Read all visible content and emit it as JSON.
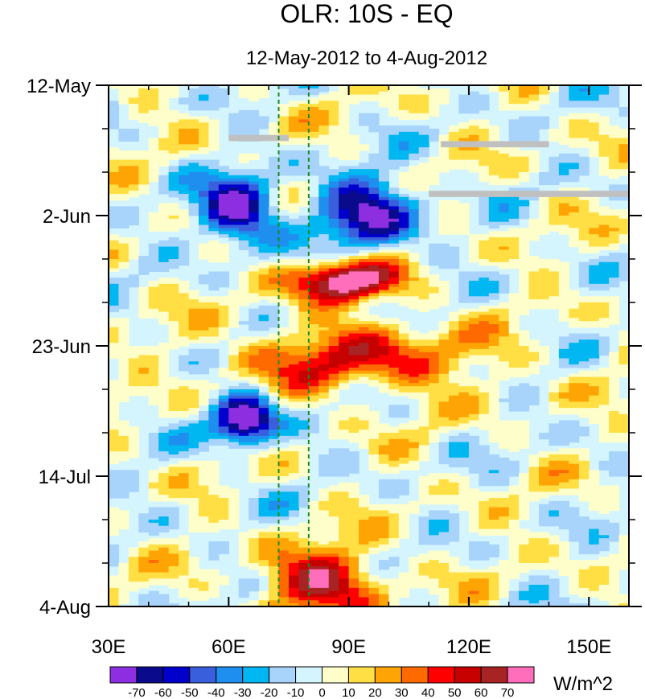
{
  "chart_data": {
    "type": "heatmap",
    "title": "OLR: 10S - EQ",
    "subtitle": "12-May-2012 to 4-Aug-2012",
    "x_range": [
      30,
      160
    ],
    "x_ticks": [
      {
        "value": 30,
        "label": "30E"
      },
      {
        "value": 60,
        "label": "60E"
      },
      {
        "value": 90,
        "label": "90E"
      },
      {
        "value": 120,
        "label": "120E"
      },
      {
        "value": 150,
        "label": "150E"
      }
    ],
    "y_range_days": [
      0,
      84
    ],
    "y_ticks": [
      {
        "day": 0,
        "label": "12-May"
      },
      {
        "day": 21,
        "label": "2-Jun"
      },
      {
        "day": 42,
        "label": "23-Jun"
      },
      {
        "day": 63,
        "label": "14-Jul"
      },
      {
        "day": 84,
        "label": "4-Aug"
      }
    ],
    "reference_lines_lon": [
      72.5,
      80
    ],
    "colorbar": {
      "unit_label": "W/m^2",
      "levels": [
        "-70",
        "-60",
        "-50",
        "-40",
        "-30",
        "-20",
        "-10",
        "0",
        "10",
        "20",
        "30",
        "40",
        "50",
        "60",
        "70"
      ],
      "colors": [
        "#8d2ee0",
        "#0a0a8c",
        "#0000cc",
        "#3a5fdc",
        "#1e8fef",
        "#00b7f1",
        "#a8d3fb",
        "#d4f5fd",
        "#fefeca",
        "#ffdf43",
        "#ffa405",
        "#ff6a00",
        "#ff0000",
        "#c70000",
        "#a82323",
        "#ff6ebb"
      ]
    },
    "features": [
      {
        "name": "strong suppressed convection (positive anomaly)",
        "lon_range": [
          78,
          100
        ],
        "days": [
          29,
          34
        ],
        "value": 60
      },
      {
        "name": "suppressed convection band",
        "lon_range": [
          70,
          115
        ],
        "days": [
          40,
          48
        ],
        "value": 35
      },
      {
        "name": "enhanced convection (negative anomaly)",
        "lon_range": [
          55,
          70
        ],
        "days": [
          16,
          24
        ],
        "value": -60
      },
      {
        "name": "enhanced convection (negative anomaly)",
        "lon_range": [
          58,
          70
        ],
        "days": [
          51,
          57
        ],
        "value": -70
      },
      {
        "name": "enhanced convection",
        "lon_range": [
          85,
          105
        ],
        "days": [
          16,
          25
        ],
        "value": -50
      },
      {
        "name": "suppressed convection late period",
        "lon_range": [
          72,
          95
        ],
        "days": [
          76,
          84
        ],
        "value": 45
      },
      {
        "name": "missing data (gray)",
        "lon_range": [
          110,
          160
        ],
        "days": [
          17,
          18
        ],
        "value": null
      },
      {
        "name": "missing data (gray)",
        "lon_range": [
          113,
          140
        ],
        "days": [
          9,
          10
        ],
        "value": null
      },
      {
        "name": "missing data (gray)",
        "lon_range": [
          60,
          75
        ],
        "days": [
          8,
          9
        ],
        "value": null
      }
    ]
  }
}
